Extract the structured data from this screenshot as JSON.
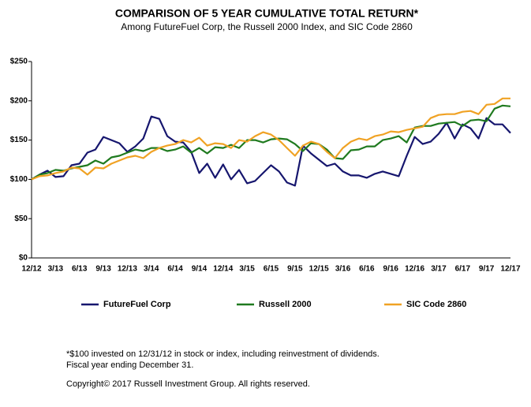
{
  "chart_data": {
    "type": "line",
    "title": "COMPARISON OF 5 YEAR CUMULATIVE TOTAL RETURN*",
    "subtitle": "Among FutureFuel Corp, the Russell 2000 Index, and SIC Code 2860",
    "categories": [
      "12/12",
      null,
      null,
      "3/13",
      null,
      null,
      "6/13",
      null,
      null,
      "9/13",
      null,
      null,
      "12/13",
      null,
      null,
      "3/14",
      null,
      null,
      "6/14",
      null,
      null,
      "9/14",
      null,
      null,
      "12/14",
      null,
      null,
      "3/15",
      null,
      null,
      "6/15",
      null,
      null,
      "9/15",
      null,
      null,
      "12/15",
      null,
      null,
      "3/16",
      null,
      null,
      "6/16",
      null,
      null,
      "9/16",
      null,
      null,
      "12/16",
      null,
      null,
      "3/17",
      null,
      null,
      "6/17",
      null,
      null,
      "9/17",
      null,
      null,
      "12/17"
    ],
    "series": [
      {
        "name": "FutureFuel Corp",
        "color": "#16166e",
        "values": [
          100,
          106,
          111,
          103,
          104,
          118,
          120,
          134,
          138,
          154,
          150,
          146,
          135,
          142,
          152,
          180,
          177,
          155,
          148,
          147,
          135,
          108,
          120,
          102,
          119,
          100,
          112,
          95,
          98,
          108,
          118,
          110,
          96,
          92,
          143,
          133,
          125,
          117,
          120,
          110,
          105,
          105,
          102,
          107,
          110,
          107,
          104,
          130,
          154,
          145,
          148,
          158,
          172,
          152,
          170,
          165,
          152,
          178,
          170,
          170,
          159
        ]
      },
      {
        "name": "Russell 2000",
        "color": "#1f7a1f",
        "values": [
          100,
          106,
          108,
          112,
          111,
          114,
          116,
          118,
          124,
          120,
          128,
          130,
          134,
          138,
          136,
          140,
          140,
          136,
          138,
          142,
          134,
          140,
          133,
          141,
          140,
          144,
          140,
          150,
          150,
          147,
          151,
          152,
          151,
          145,
          136,
          146,
          145,
          138,
          127,
          126,
          137,
          138,
          142,
          142,
          150,
          152,
          155,
          147,
          166,
          168,
          168,
          171,
          172,
          173,
          168,
          175,
          176,
          174,
          190,
          194,
          193
        ]
      },
      {
        "name": "SIC Code 2860",
        "color": "#f0a224",
        "values": [
          100,
          104,
          105,
          108,
          110,
          115,
          114,
          106,
          115,
          114,
          120,
          124,
          128,
          130,
          127,
          135,
          140,
          143,
          145,
          150,
          147,
          153,
          143,
          146,
          145,
          140,
          150,
          148,
          155,
          160,
          157,
          150,
          140,
          130,
          143,
          148,
          145,
          135,
          127,
          140,
          148,
          152,
          150,
          155,
          157,
          161,
          160,
          163,
          165,
          167,
          178,
          182,
          183,
          183,
          186,
          187,
          183,
          195,
          196,
          203,
          203
        ]
      }
    ],
    "ylim": [
      0,
      250
    ],
    "yticks": [
      {
        "value": 0,
        "label": "$0"
      },
      {
        "value": 50,
        "label": "$50"
      },
      {
        "value": 100,
        "label": "$100"
      },
      {
        "value": 150,
        "label": "$150"
      },
      {
        "value": 200,
        "label": "$200"
      },
      {
        "value": 250,
        "label": "$250"
      }
    ],
    "grid": false,
    "notes": [
      "*$100 invested on 12/31/12 in stock or index, including reinvestment of dividends.",
      "Fiscal year ending December 31.",
      "Copyright© 2017 Russell Investment Group. All rights reserved."
    ]
  }
}
